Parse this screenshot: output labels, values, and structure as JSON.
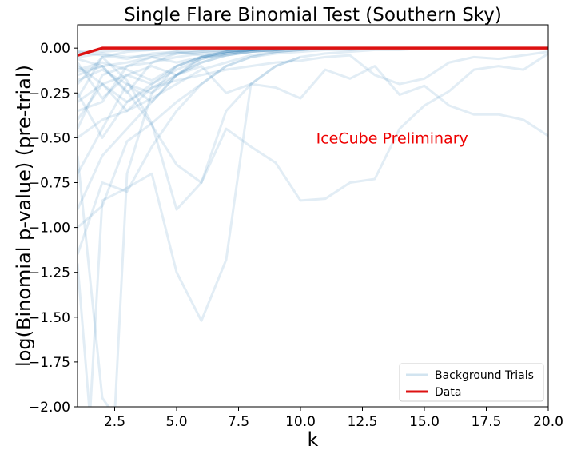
{
  "chart_data": {
    "type": "line",
    "title": "Single Flare Binomial Test (Southern Sky)",
    "xlabel": "k",
    "ylabel": "log(Binomial p-value) (pre-trial)",
    "xlim": [
      1,
      20
    ],
    "ylim": [
      -2.0,
      0.13
    ],
    "x_ticks": [
      2.5,
      5.0,
      7.5,
      10.0,
      12.5,
      15.0,
      17.5,
      20.0
    ],
    "x_tick_labels": [
      "2.5",
      "5.0",
      "7.5",
      "10.0",
      "12.5",
      "15.0",
      "17.5",
      "20.0"
    ],
    "y_ticks": [
      0.0,
      -0.25,
      -0.5,
      -0.75,
      -1.0,
      -1.25,
      -1.5,
      -1.75,
      -2.0
    ],
    "y_tick_labels": [
      "0.00",
      "−0.25",
      "−0.50",
      "−0.75",
      "−1.00",
      "−1.25",
      "−1.50",
      "−1.75",
      "−2.00"
    ],
    "grid": false,
    "legend_position": "bottom-right",
    "annotation": {
      "text": "IceCube Preliminary",
      "x": 13.7,
      "y": -0.5,
      "color": "#ee0000"
    },
    "colors": {
      "background": "#1f77b4",
      "data": "#dd1111"
    },
    "series": [
      {
        "name": "Background Trials",
        "role": "background",
        "color": "#1f77b4",
        "opacity": 0.13,
        "trials": [
          {
            "x": [
              1,
              2,
              3,
              4,
              5,
              6,
              7,
              8,
              9,
              10,
              11,
              12,
              13,
              14,
              15,
              16,
              17,
              18,
              19,
              20
            ],
            "y": [
              -0.13,
              -0.1,
              -0.24,
              -0.43,
              -0.65,
              -0.75,
              -0.45,
              -0.55,
              -0.64,
              -0.85,
              -0.84,
              -0.75,
              -0.73,
              -0.45,
              -0.32,
              -0.24,
              -0.12,
              -0.1,
              -0.12,
              -0.03
            ]
          },
          {
            "x": [
              1,
              2,
              3,
              4,
              5,
              6,
              7,
              8,
              9,
              10,
              11,
              12,
              13,
              14,
              15,
              16,
              17,
              18,
              19,
              20
            ],
            "y": [
              -0.2,
              -0.05,
              -0.18,
              -0.42,
              -0.9,
              -0.75,
              -0.35,
              -0.2,
              -0.22,
              -0.28,
              -0.12,
              -0.17,
              -0.1,
              -0.26,
              -0.21,
              -0.32,
              -0.37,
              -0.37,
              -0.4,
              -0.49
            ]
          },
          {
            "x": [
              1,
              2,
              3,
              4,
              5,
              6,
              7,
              8,
              9,
              10,
              11,
              12,
              13,
              14,
              15,
              16,
              17,
              18,
              19,
              20
            ],
            "y": [
              -0.1,
              -0.2,
              -0.3,
              -0.22,
              -0.18,
              -0.15,
              -0.12,
              -0.1,
              -0.08,
              -0.07,
              -0.05,
              -0.04,
              -0.15,
              -0.2,
              -0.17,
              -0.08,
              -0.05,
              -0.06,
              -0.04,
              -0.02
            ]
          },
          {
            "x": [
              1,
              2,
              3,
              4,
              5,
              6,
              7,
              8,
              9,
              10,
              11,
              12,
              13,
              14,
              15,
              16,
              17,
              18,
              19,
              20
            ],
            "y": [
              -0.3,
              -0.2,
              -0.15,
              -0.1,
              -0.15,
              -0.1,
              -0.25,
              -0.2,
              -0.1,
              -0.05,
              -0.03,
              -0.02,
              -0.01,
              -0.01,
              0.0,
              0.0,
              0.0,
              0.0,
              0.0,
              0.0
            ]
          },
          {
            "x": [
              1,
              2,
              3,
              4,
              5,
              6,
              7,
              8,
              9,
              10,
              11,
              12,
              13,
              14,
              15,
              16,
              17,
              18,
              19,
              20
            ],
            "y": [
              -1.15,
              -0.75,
              -0.8,
              -0.55,
              -0.35,
              -0.2,
              -0.1,
              -0.05,
              -0.03,
              -0.02,
              -0.01,
              -0.01,
              0.0,
              0.0,
              0.0,
              0.0,
              0.0,
              0.0,
              0.0,
              0.0
            ]
          },
          {
            "x": [
              1,
              1.5,
              2,
              3,
              4,
              5,
              6,
              7,
              8,
              9,
              10
            ],
            "y": [
              -1.2,
              -2.05,
              -0.85,
              -0.78,
              -0.7,
              -1.25,
              -1.52,
              -1.18,
              -0.2,
              -0.1,
              -0.05
            ]
          },
          {
            "x": [
              1,
              2,
              2.5,
              3,
              4,
              5,
              6,
              7,
              8,
              9,
              10
            ],
            "y": [
              -0.6,
              -1.95,
              -2.05,
              -0.7,
              -0.25,
              -0.15,
              -0.08,
              -0.04,
              -0.02,
              -0.01,
              0.0
            ]
          },
          {
            "x": [
              1,
              2,
              3,
              4,
              5,
              6,
              7,
              8,
              9,
              10,
              11,
              12
            ],
            "y": [
              -1.0,
              -0.88,
              -0.52,
              -0.42,
              -0.3,
              -0.2,
              -0.1,
              -0.05,
              -0.02,
              -0.01,
              0.0,
              0.0
            ]
          },
          {
            "x": [
              1,
              2,
              3,
              4,
              5,
              6,
              7,
              8,
              9,
              10,
              11,
              12
            ],
            "y": [
              -0.5,
              -0.4,
              -0.35,
              -0.28,
              -0.2,
              -0.12,
              -0.08,
              -0.04,
              -0.02,
              -0.01,
              0.0,
              0.0
            ]
          },
          {
            "x": [
              1,
              2,
              3,
              4,
              5,
              6,
              7,
              8,
              9,
              10,
              11,
              12
            ],
            "y": [
              -0.45,
              -0.15,
              -0.1,
              -0.08,
              -0.05,
              -0.03,
              -0.02,
              -0.01,
              0.0,
              0.0,
              0.0,
              0.0
            ]
          },
          {
            "x": [
              1,
              2,
              3,
              4,
              5,
              6,
              7,
              8,
              9,
              10,
              11,
              12
            ],
            "y": [
              -0.35,
              -0.3,
              -0.1,
              -0.05,
              -0.08,
              -0.05,
              -0.03,
              -0.02,
              -0.01,
              0.0,
              0.0,
              0.0
            ]
          },
          {
            "x": [
              1,
              2,
              3,
              4,
              5,
              6,
              7,
              8,
              9,
              10,
              11,
              12
            ],
            "y": [
              -0.08,
              -0.28,
              -0.15,
              -0.2,
              -0.1,
              -0.05,
              -0.04,
              -0.02,
              -0.01,
              0.0,
              0.0,
              0.0
            ]
          },
          {
            "x": [
              1,
              2,
              3,
              4,
              5,
              6,
              7,
              8,
              9,
              10,
              11,
              12
            ],
            "y": [
              -0.05,
              -0.03,
              -0.05,
              -0.04,
              -0.02,
              -0.01,
              0.0,
              0.0,
              0.0,
              0.0,
              0.0,
              0.0
            ]
          },
          {
            "x": [
              1,
              2,
              3,
              4,
              5,
              6,
              7,
              8,
              9,
              10,
              11,
              12
            ],
            "y": [
              -0.02,
              -0.02,
              -0.01,
              -0.01,
              0.0,
              0.0,
              0.0,
              0.0,
              0.0,
              0.0,
              0.0,
              0.0
            ]
          },
          {
            "x": [
              1,
              2,
              3,
              4,
              5,
              6,
              7,
              8,
              9,
              10,
              11,
              12
            ],
            "y": [
              -0.15,
              -0.1,
              -0.25,
              -0.08,
              -0.03,
              -0.02,
              -0.01,
              0.0,
              0.0,
              0.0,
              0.0,
              0.0
            ]
          },
          {
            "x": [
              1,
              2,
              3,
              4,
              5,
              6,
              7,
              8,
              9,
              10,
              11,
              12
            ],
            "y": [
              -0.25,
              -0.5,
              -0.3,
              -0.2,
              -0.12,
              -0.06,
              -0.03,
              -0.01,
              0.0,
              0.0,
              0.0,
              0.0
            ]
          },
          {
            "x": [
              1,
              2,
              3,
              4,
              5,
              6,
              7,
              8,
              9,
              10,
              11,
              12
            ],
            "y": [
              -0.4,
              -0.2,
              -0.35,
              -0.22,
              -0.15,
              -0.06,
              -0.03,
              -0.01,
              0.0,
              0.0,
              0.0,
              0.0
            ]
          },
          {
            "x": [
              1,
              2,
              3,
              4,
              5,
              6,
              7,
              8,
              9,
              10,
              11,
              12
            ],
            "y": [
              -0.12,
              -0.08,
              -0.12,
              -0.18,
              -0.1,
              -0.05,
              -0.02,
              -0.01,
              0.0,
              0.0,
              0.0,
              0.0
            ]
          },
          {
            "x": [
              1,
              2,
              3,
              4,
              5,
              6,
              7,
              8,
              9,
              10,
              11,
              12
            ],
            "y": [
              -0.02,
              -0.04,
              -0.06,
              -0.03,
              -0.02,
              -0.04,
              -0.02,
              -0.01,
              -0.02,
              -0.01,
              0.0,
              0.0
            ]
          },
          {
            "x": [
              1,
              2,
              3,
              4,
              5,
              6,
              7,
              8,
              9,
              10
            ],
            "y": [
              -0.9,
              -0.6,
              -0.45,
              -0.3,
              -0.15,
              -0.08,
              -0.04,
              -0.02,
              -0.01,
              0.0
            ]
          },
          {
            "x": [
              1,
              2,
              3,
              4,
              5,
              6,
              7,
              8,
              9,
              10
            ],
            "y": [
              -0.7,
              -0.45,
              -0.2,
              -0.25,
              -0.1,
              -0.05,
              -0.02,
              -0.01,
              0.0,
              0.0
            ]
          },
          {
            "x": [
              1,
              2,
              3,
              4,
              5,
              6,
              7,
              8,
              9,
              10
            ],
            "y": [
              -0.28,
              -0.05,
              -0.02,
              -0.01,
              0.0,
              0.0,
              0.0,
              0.0,
              0.0,
              0.0
            ]
          },
          {
            "x": [
              1,
              2,
              3,
              4,
              5,
              6,
              7,
              8,
              9,
              10
            ],
            "y": [
              -0.18,
              -0.12,
              -0.2,
              -0.3,
              -0.15,
              -0.05,
              -0.02,
              -0.01,
              0.0,
              0.0
            ]
          },
          {
            "x": [
              1,
              2,
              3,
              4,
              5,
              6,
              7,
              8,
              9,
              10
            ],
            "y": [
              -0.06,
              -0.1,
              -0.08,
              -0.05,
              -0.03,
              -0.02,
              -0.01,
              0.0,
              0.0,
              0.0
            ]
          }
        ]
      },
      {
        "name": "Data",
        "role": "data",
        "color": "#dd1111",
        "x": [
          1,
          2,
          3,
          4,
          5,
          6,
          7,
          8,
          9,
          10,
          11,
          12,
          13,
          14,
          15,
          16,
          17,
          18,
          19,
          20
        ],
        "y": [
          -0.04,
          0.0,
          0.0,
          0.0,
          0.0,
          0.0,
          0.0,
          0.0,
          0.0,
          0.0,
          0.0,
          0.0,
          0.0,
          0.0,
          0.0,
          0.0,
          0.0,
          0.0,
          0.0,
          0.0
        ]
      }
    ]
  }
}
